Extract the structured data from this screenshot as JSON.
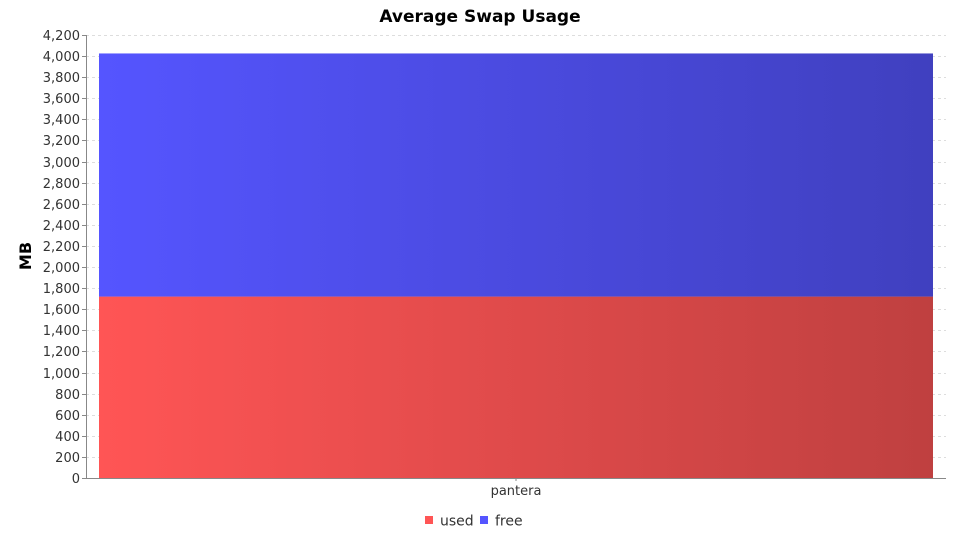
{
  "chart_data": {
    "type": "bar",
    "stacked": true,
    "title": "Average Swap Usage",
    "xlabel": "",
    "ylabel": "MB",
    "ylim": [
      0,
      4200
    ],
    "yticks": [
      0,
      200,
      400,
      600,
      800,
      1000,
      1200,
      1400,
      1600,
      1800,
      2000,
      2200,
      2400,
      2600,
      2800,
      3000,
      3200,
      3400,
      3600,
      3800,
      4000,
      4200
    ],
    "ytick_labels": [
      "0",
      "200",
      "400",
      "600",
      "800",
      "1,000",
      "1,200",
      "1,400",
      "1,600",
      "1,800",
      "2,000",
      "2,200",
      "2,400",
      "2,600",
      "2,800",
      "3,000",
      "3,200",
      "3,400",
      "3,600",
      "3,800",
      "4,000",
      "4,200"
    ],
    "categories": [
      "pantera"
    ],
    "series": [
      {
        "name": "used",
        "values": [
          1720
        ],
        "color": "#ff5555",
        "color_dark": "#bf4040"
      },
      {
        "name": "free",
        "values": [
          2305
        ],
        "color": "#5555ff",
        "color_dark": "#4040bf"
      }
    ],
    "grid": true,
    "legend": "bottom-center"
  }
}
